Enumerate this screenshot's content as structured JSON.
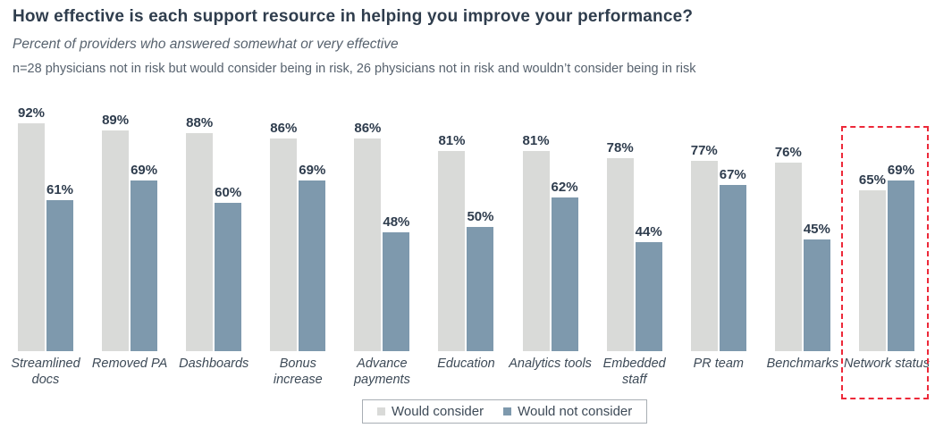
{
  "header": {
    "title": "How effective is each support resource in helping you improve your performance?",
    "subtitle": "Percent of providers who answered somewhat or very effective",
    "note": "n=28 physicians not in risk but would consider being in risk,  26 physicians not in risk and wouldn’t consider being in risk"
  },
  "legend": {
    "items": [
      {
        "label": "Would consider",
        "color": "#d9dad8"
      },
      {
        "label": "Would not consider",
        "color": "#7e99ad"
      }
    ],
    "position": "bottom",
    "border_color": "#a8aeb4"
  },
  "chart_data": {
    "type": "bar",
    "title": "How effective is each support resource in helping you improve your performance?",
    "subtitle": "Percent of providers who answered somewhat or very effective",
    "categories": [
      "Streamlined\ndocs",
      "Removed PA",
      "Dashboards",
      "Bonus\nincrease",
      "Advance\npayments",
      "Education",
      "Analytics tools",
      "Embedded\nstaff",
      "PR team",
      "Benchmarks",
      "Network status"
    ],
    "series": [
      {
        "name": "Would consider",
        "color": "#d9dad8",
        "values": [
          92,
          89,
          88,
          86,
          86,
          81,
          81,
          78,
          77,
          76,
          65
        ]
      },
      {
        "name": "Would not consider",
        "color": "#7e99ad",
        "values": [
          61,
          69,
          60,
          69,
          48,
          50,
          62,
          44,
          67,
          45,
          69
        ]
      }
    ],
    "value_suffix": "%",
    "xlabel": "",
    "ylabel": "",
    "ylim": [
      0,
      100
    ],
    "grid": false,
    "data_labels": true,
    "legend_position": "bottom",
    "annotations": [
      {
        "type": "highlight-box",
        "category": "Network status",
        "style": "dashed",
        "color": "#ed2939"
      }
    ]
  }
}
